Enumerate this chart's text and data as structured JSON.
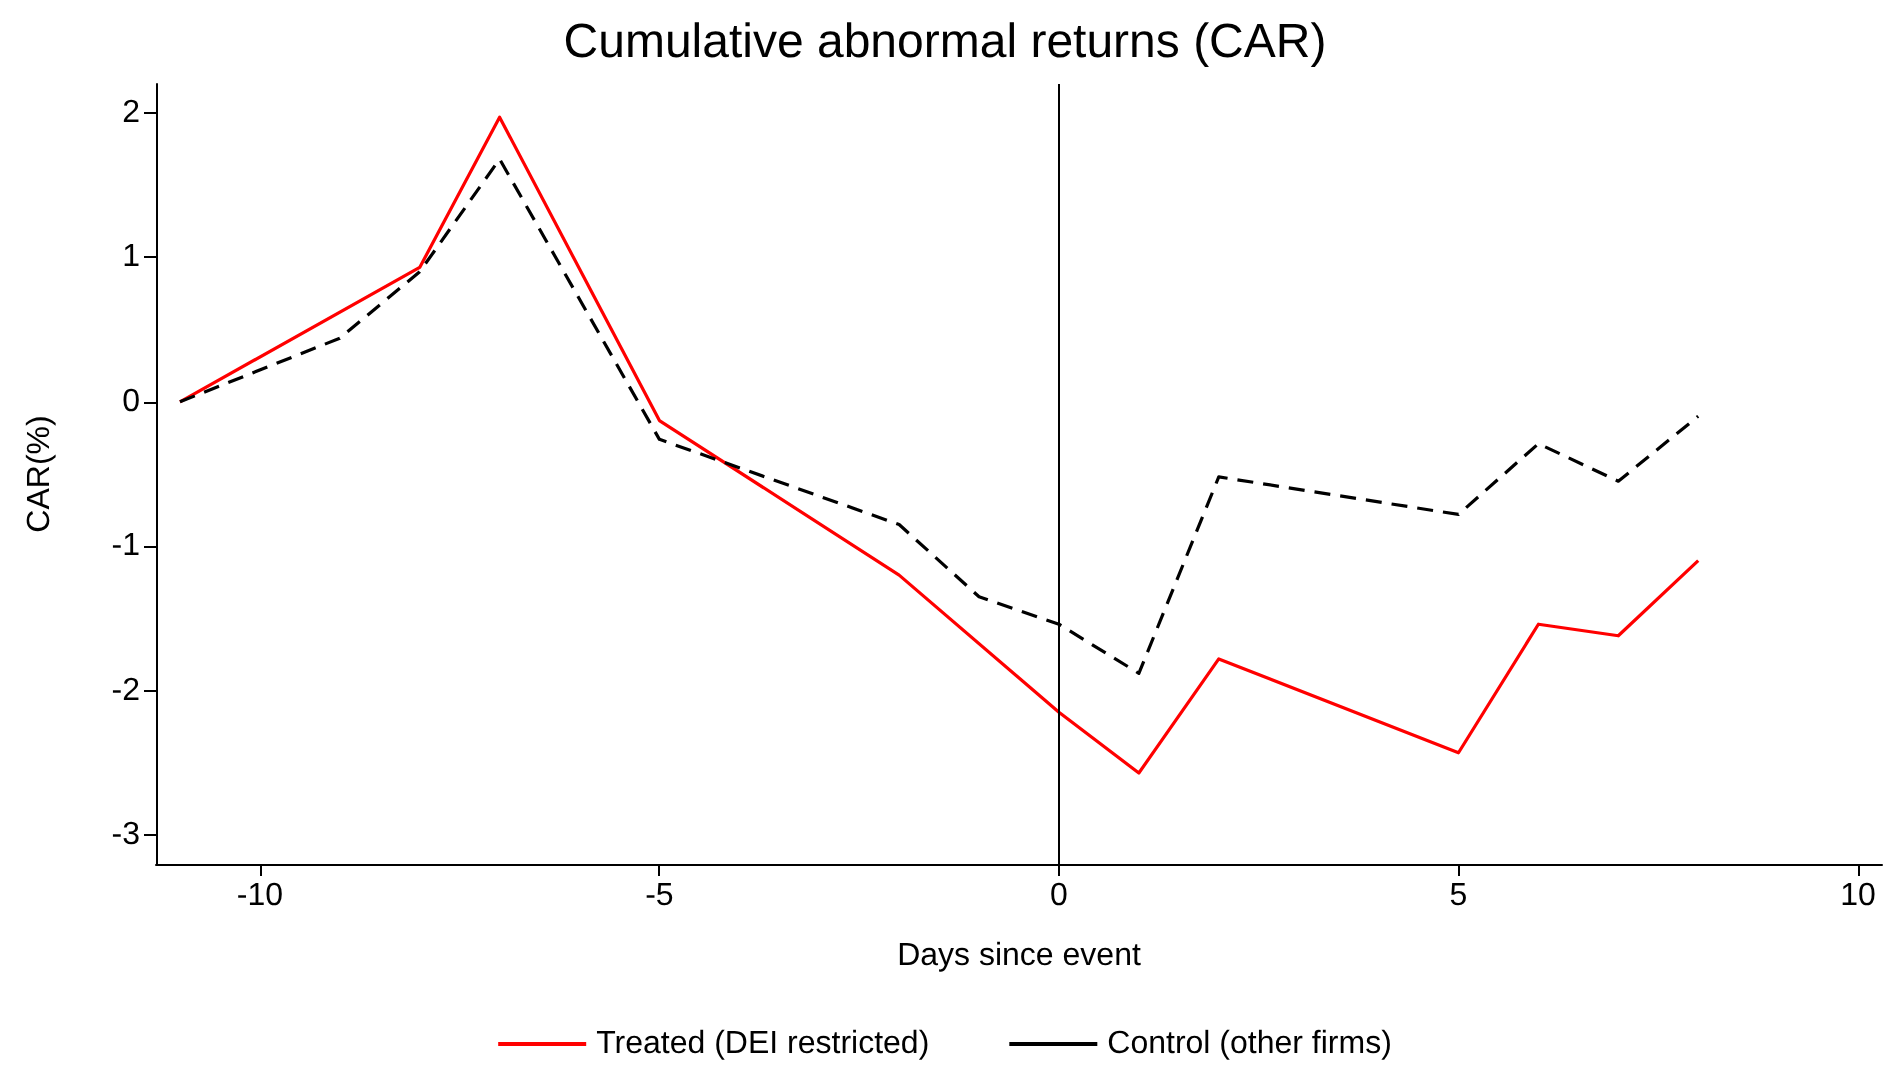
{
  "chart_data": {
    "type": "line",
    "title": "Cumulative abnormal returns (CAR)",
    "xlabel": "Days since event",
    "ylabel": "CAR(%)",
    "xlim": [
      -11.3,
      10.3
    ],
    "xticks": [
      -10,
      -5,
      0,
      5,
      10
    ],
    "ylim": [
      -3.2,
      2.2
    ],
    "yticks": [
      -3,
      -2,
      -1,
      0,
      1,
      2
    ],
    "grid": false,
    "legend": "bottom",
    "marker": "none",
    "ref_lines": [
      {
        "axis": "x",
        "value": 0,
        "color": "#000000"
      }
    ],
    "series": [
      {
        "name": "Treated (DEI restricted)",
        "color": "#ff0000",
        "line_style": "solid",
        "x": [
          -11,
          -8,
          -7,
          -5,
          -2,
          0,
          1,
          2,
          5,
          6,
          7,
          8
        ],
        "values": [
          0,
          0.93,
          1.97,
          -0.13,
          -1.2,
          -2.15,
          -2.57,
          -1.78,
          -2.43,
          -1.54,
          -1.62,
          -1.1
        ]
      },
      {
        "name": "Control (other firms)",
        "color": "#000000",
        "line_style": "dashed",
        "x": [
          -11,
          -9,
          -8,
          -7,
          -5,
          -2,
          -1,
          0,
          1,
          2,
          5,
          6,
          7,
          8
        ],
        "values": [
          0,
          0.44,
          0.9,
          1.68,
          -0.26,
          -0.85,
          -1.35,
          -1.54,
          -1.88,
          -0.52,
          -0.78,
          -0.29,
          -0.55,
          -0.1
        ]
      }
    ]
  }
}
